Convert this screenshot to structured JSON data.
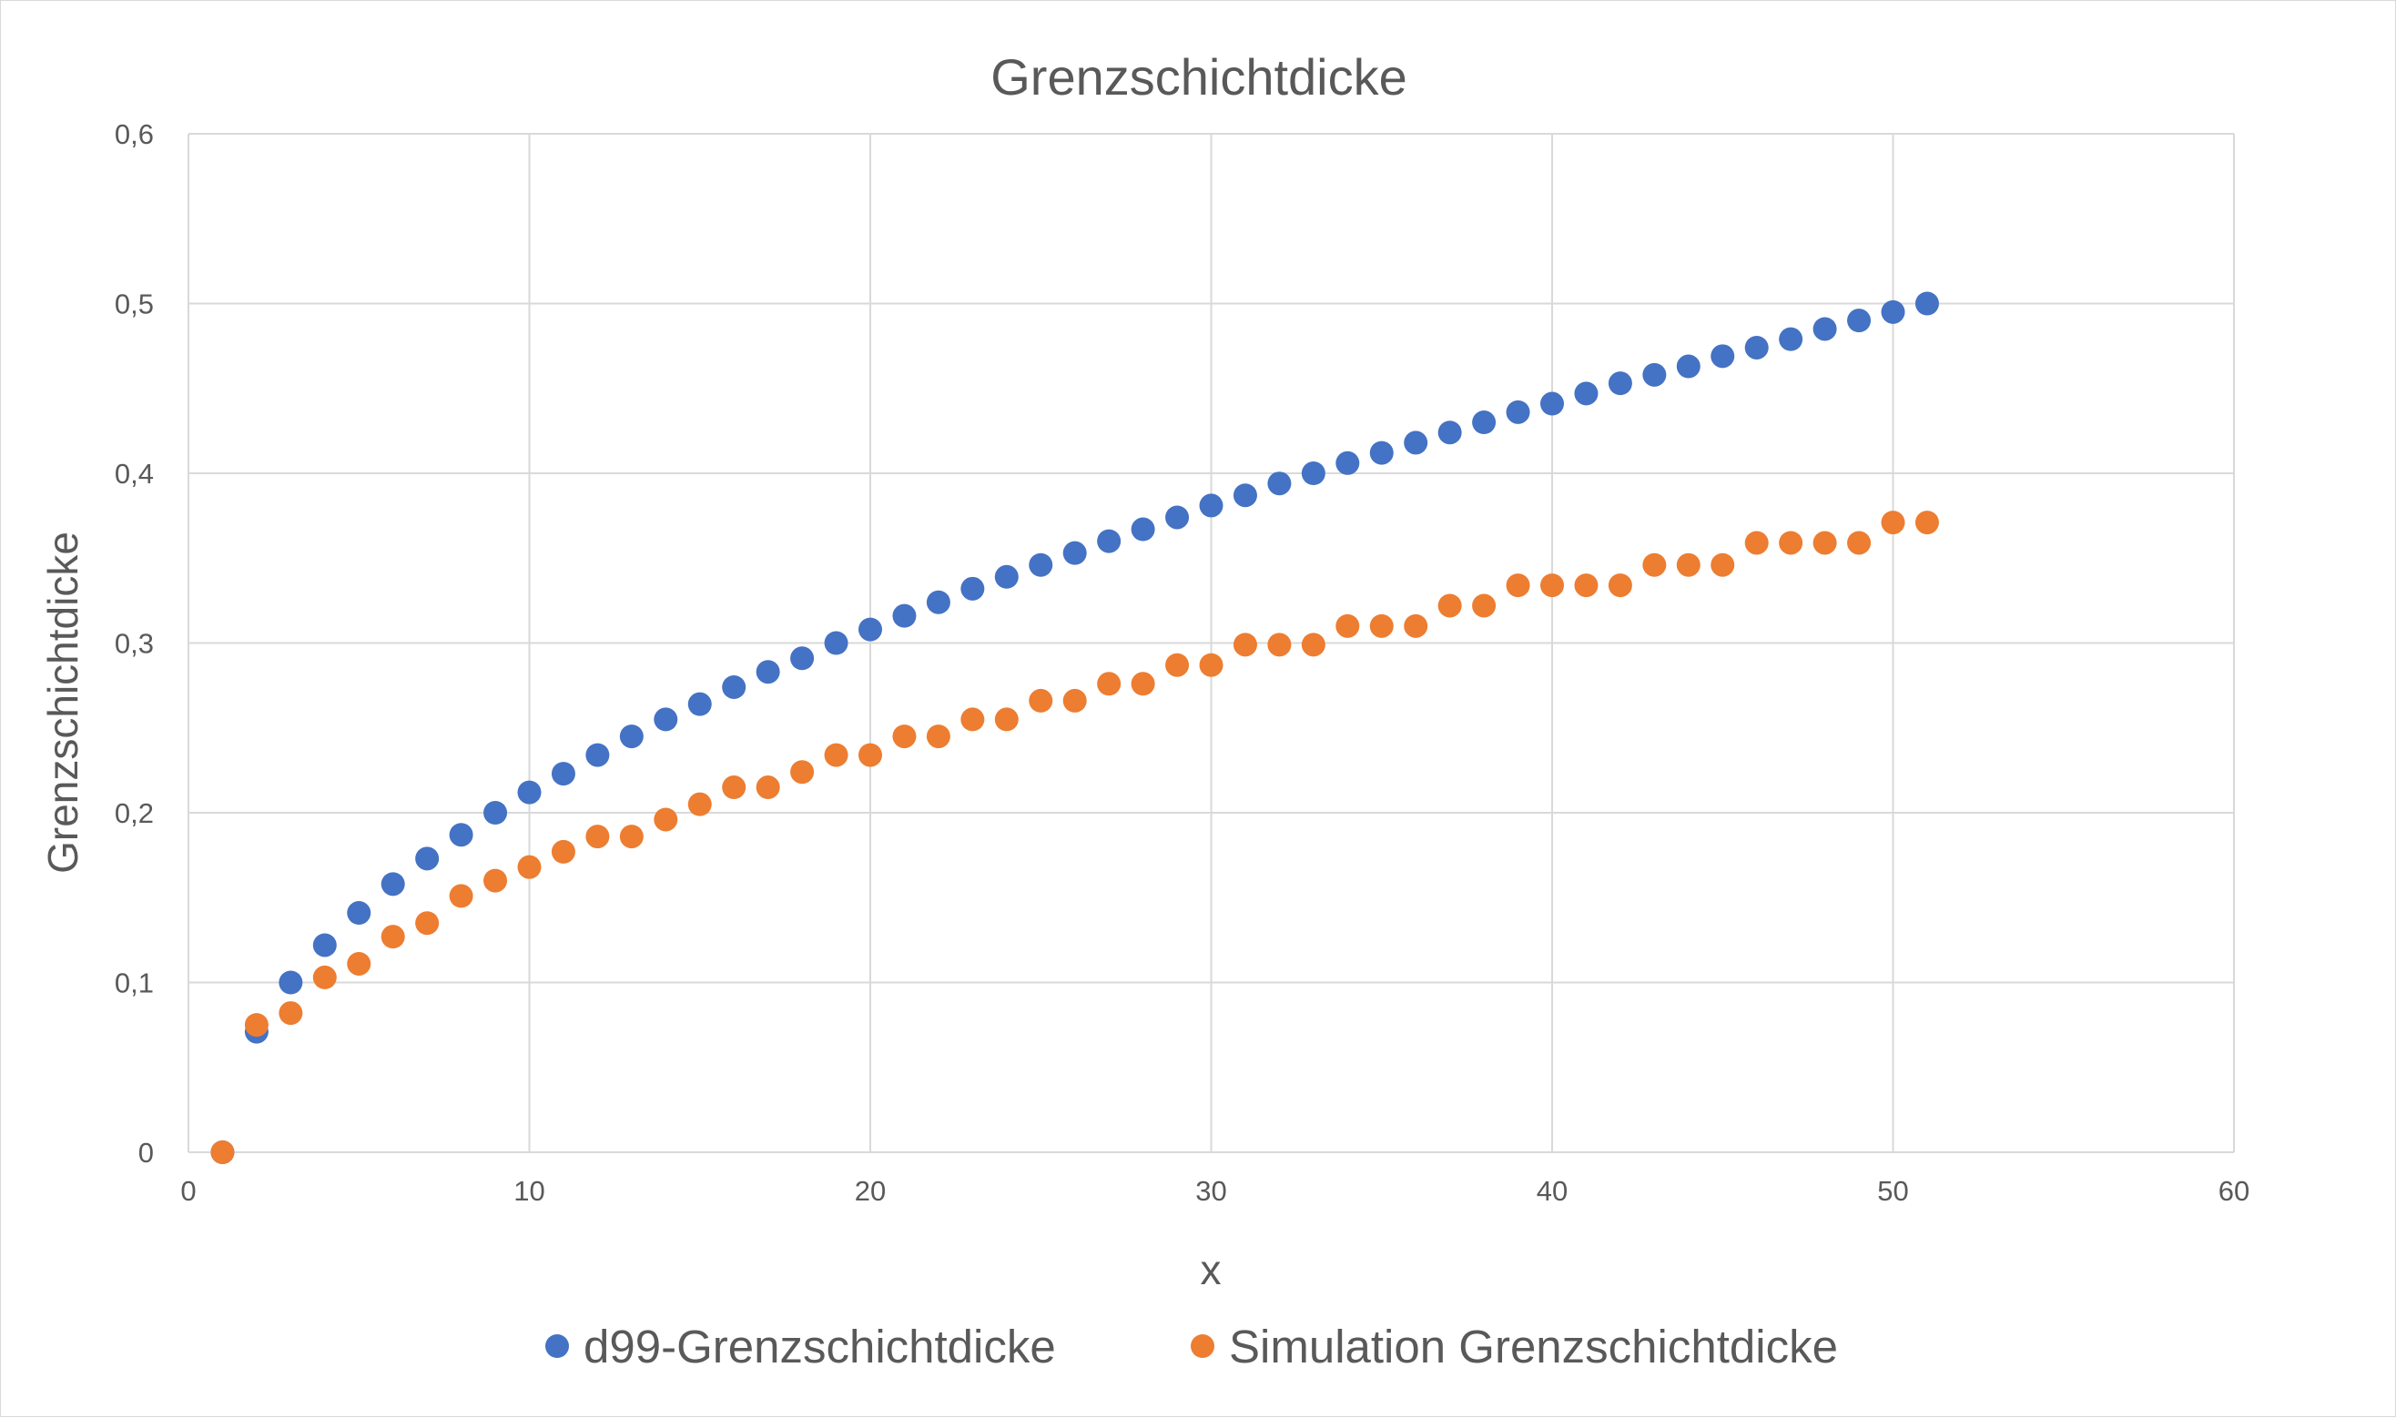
{
  "chart_data": {
    "type": "scatter",
    "title": "Grenzschichtdicke",
    "xlabel": "x",
    "ylabel": "Grenzschichtdicke",
    "xlim": [
      0,
      60
    ],
    "ylim": [
      0,
      0.6
    ],
    "xticks": [
      0,
      10,
      20,
      30,
      40,
      50,
      60
    ],
    "yticks": [
      0,
      0.1,
      0.2,
      0.3,
      0.4,
      0.5,
      0.6
    ],
    "xtick_labels": [
      "0",
      "10",
      "20",
      "30",
      "40",
      "50",
      "60"
    ],
    "ytick_labels": [
      "0",
      "0,1",
      "0,2",
      "0,3",
      "0,4",
      "0,5",
      "0,6"
    ],
    "grid": true,
    "legend_position": "bottom",
    "series": [
      {
        "name": "d99-Grenzschichtdicke",
        "color": "#4472C4",
        "x": [
          1,
          2,
          3,
          4,
          5,
          6,
          7,
          8,
          9,
          10,
          11,
          12,
          13,
          14,
          15,
          16,
          17,
          18,
          19,
          20,
          21,
          22,
          23,
          24,
          25,
          26,
          27,
          28,
          29,
          30,
          31,
          32,
          33,
          34,
          35,
          36,
          37,
          38,
          39,
          40,
          41,
          42,
          43,
          44,
          45,
          46,
          47,
          48,
          49,
          50,
          51
        ],
        "y": [
          0,
          0.071,
          0.1,
          0.122,
          0.141,
          0.158,
          0.173,
          0.187,
          0.2,
          0.212,
          0.223,
          0.234,
          0.245,
          0.255,
          0.264,
          0.274,
          0.283,
          0.291,
          0.3,
          0.308,
          0.316,
          0.324,
          0.332,
          0.339,
          0.346,
          0.353,
          0.36,
          0.367,
          0.374,
          0.381,
          0.387,
          0.394,
          0.4,
          0.406,
          0.412,
          0.418,
          0.424,
          0.43,
          0.436,
          0.441,
          0.447,
          0.453,
          0.458,
          0.463,
          0.469,
          0.474,
          0.479,
          0.485,
          0.49,
          0.495,
          0.5
        ]
      },
      {
        "name": "Simulation Grenzschichtdicke",
        "color": "#ED7D31",
        "x": [
          1,
          2,
          3,
          4,
          5,
          6,
          7,
          8,
          9,
          10,
          11,
          12,
          13,
          14,
          15,
          16,
          17,
          18,
          19,
          20,
          21,
          22,
          23,
          24,
          25,
          26,
          27,
          28,
          29,
          30,
          31,
          32,
          33,
          34,
          35,
          36,
          37,
          38,
          39,
          40,
          41,
          42,
          43,
          44,
          45,
          46,
          47,
          48,
          49,
          50,
          51
        ],
        "y": [
          0,
          0.075,
          0.082,
          0.103,
          0.111,
          0.127,
          0.135,
          0.151,
          0.16,
          0.168,
          0.177,
          0.186,
          0.186,
          0.196,
          0.205,
          0.215,
          0.215,
          0.224,
          0.234,
          0.234,
          0.245,
          0.245,
          0.255,
          0.255,
          0.266,
          0.266,
          0.276,
          0.276,
          0.287,
          0.287,
          0.299,
          0.299,
          0.299,
          0.31,
          0.31,
          0.31,
          0.322,
          0.322,
          0.334,
          0.334,
          0.334,
          0.334,
          0.346,
          0.346,
          0.346,
          0.359,
          0.359,
          0.359,
          0.359,
          0.371,
          0.371
        ]
      }
    ]
  }
}
